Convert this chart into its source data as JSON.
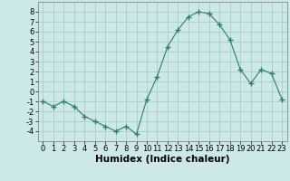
{
  "x": [
    0,
    1,
    2,
    3,
    4,
    5,
    6,
    7,
    8,
    9,
    10,
    11,
    12,
    13,
    14,
    15,
    16,
    17,
    18,
    19,
    20,
    21,
    22,
    23
  ],
  "y": [
    -1,
    -1.5,
    -1,
    -1.5,
    -2.5,
    -3,
    -3.5,
    -4,
    -3.5,
    -4.3,
    -0.8,
    1.5,
    4.5,
    6.2,
    7.5,
    8,
    7.8,
    6.7,
    5.2,
    2.2,
    0.8,
    2.2,
    1.8,
    -0.8
  ],
  "line_color": "#2e7d6e",
  "marker": "+",
  "marker_size": 4,
  "bg_color": "#cce8e8",
  "grid_color": "#aacccc",
  "xlabel": "Humidex (Indice chaleur)",
  "xlim": [
    -0.5,
    23.5
  ],
  "ylim": [
    -5,
    9
  ],
  "yticks": [
    -4,
    -3,
    -2,
    -1,
    0,
    1,
    2,
    3,
    4,
    5,
    6,
    7,
    8
  ],
  "xticks": [
    0,
    1,
    2,
    3,
    4,
    5,
    6,
    7,
    8,
    9,
    10,
    11,
    12,
    13,
    14,
    15,
    16,
    17,
    18,
    19,
    20,
    21,
    22,
    23
  ],
  "tick_font_size": 6,
  "label_font_size": 7.5
}
